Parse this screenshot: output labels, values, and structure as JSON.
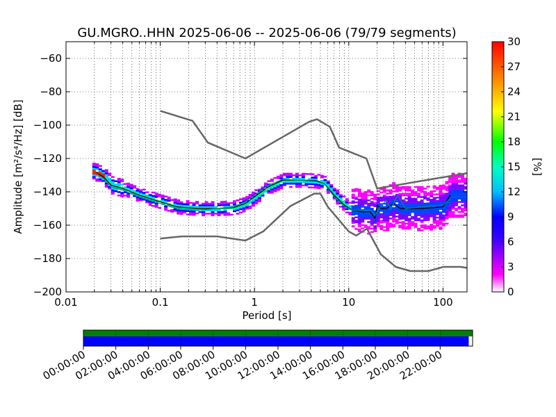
{
  "chart_data": {
    "type": "heatmap",
    "title": "GU.MGRO..HHN   2025-06-06 -- 2025-06-06  (79/79 segments)",
    "xlabel": "Period [s]",
    "ylabel": "Amplitude [m²/s⁴/Hz] [dB]",
    "xscale": "log",
    "xlim": [
      0.01,
      180
    ],
    "ylim": [
      -200,
      -50
    ],
    "xticks": [
      {
        "value": 0.01,
        "label": "0.01"
      },
      {
        "value": 0.1,
        "label": "0.1"
      },
      {
        "value": 1,
        "label": "1"
      },
      {
        "value": 10,
        "label": "10"
      },
      {
        "value": 100,
        "label": "100"
      }
    ],
    "yticks": [
      {
        "value": -60,
        "label": "−60"
      },
      {
        "value": -80,
        "label": "−80"
      },
      {
        "value": -100,
        "label": "−100"
      },
      {
        "value": -120,
        "label": "−120"
      },
      {
        "value": -140,
        "label": "−140"
      },
      {
        "value": -160,
        "label": "−160"
      },
      {
        "value": -180,
        "label": "−180"
      },
      {
        "value": -200,
        "label": "−200"
      }
    ],
    "grid": true,
    "colorbar": {
      "label": "[%]",
      "range": [
        0,
        30
      ],
      "ticks": [
        {
          "value": 0,
          "label": "0"
        },
        {
          "value": 3,
          "label": "3"
        },
        {
          "value": 6,
          "label": "6"
        },
        {
          "value": 9,
          "label": "9"
        },
        {
          "value": 12,
          "label": "12"
        },
        {
          "value": 15,
          "label": "15"
        },
        {
          "value": 18,
          "label": "18"
        },
        {
          "value": 21,
          "label": "21"
        },
        {
          "value": 24,
          "label": "24"
        },
        {
          "value": 27,
          "label": "27"
        },
        {
          "value": 30,
          "label": "30"
        }
      ],
      "colors": [
        "#ffffff",
        "#ff00ff",
        "#7f00ff",
        "#0000ff",
        "#00bfff",
        "#00ffbf",
        "#00ff00",
        "#ffff00",
        "#ff7f00",
        "#ff0000"
      ]
    },
    "series": [
      {
        "role": "new-high-noise-model",
        "color": "#666666",
        "x": [
          0.1,
          0.22,
          0.32,
          0.8,
          3.8,
          4.6,
          6.3,
          7.9,
          15.4,
          20,
          354.8
        ],
        "y": [
          -91.5,
          -97.4,
          -110.5,
          -120,
          -98,
          -96.5,
          -101,
          -113.5,
          -120,
          -138,
          -126
        ]
      },
      {
        "role": "new-low-noise-model",
        "color": "#666666",
        "x": [
          0.1,
          0.17,
          0.4,
          0.8,
          1.24,
          2.4,
          4.3,
          5,
          6,
          10,
          12,
          15.6,
          21.9,
          31.6,
          45,
          70,
          101,
          154,
          180
        ],
        "y": [
          -168,
          -166.7,
          -166.7,
          -169.2,
          -163.7,
          -148.6,
          -141.1,
          -141.1,
          -149,
          -163.8,
          -166.2,
          -162.1,
          -177.5,
          -185,
          -187.5,
          -187.5,
          -185,
          -185,
          -185.6
        ]
      },
      {
        "role": "mean",
        "color": "#000000",
        "x": [
          0.02,
          0.025,
          0.03,
          0.04,
          0.06,
          0.1,
          0.15,
          0.25,
          0.4,
          0.6,
          0.8,
          1,
          1.4,
          2,
          3,
          4.5,
          5.5,
          7,
          9,
          11,
          14,
          17,
          19,
          20,
          22,
          25,
          30,
          35,
          40,
          60,
          100,
          120
        ],
        "y": [
          -128,
          -131,
          -136,
          -138,
          -142,
          -146,
          -149,
          -150,
          -150,
          -149.5,
          -147,
          -143,
          -137,
          -133,
          -133,
          -133.5,
          -135,
          -142,
          -148,
          -151,
          -152,
          -152,
          -156,
          -148,
          -150,
          -150,
          -147,
          -150,
          -150,
          -150,
          -149,
          -142
        ]
      },
      {
        "role": "mode",
        "color": "#008b8b",
        "x": [
          0.02,
          0.025,
          0.03,
          0.04,
          0.06,
          0.1,
          0.15,
          0.25,
          0.4,
          0.6,
          0.8,
          1,
          1.4,
          2,
          3,
          4.5,
          5.5,
          7,
          9,
          11,
          14,
          17,
          19,
          21,
          25,
          28,
          33,
          40,
          60,
          100,
          120
        ],
        "y": [
          -128,
          -132,
          -137,
          -139,
          -143,
          -147,
          -150,
          -151,
          -150,
          -149,
          -146,
          -142,
          -136,
          -132.5,
          -133,
          -133,
          -135,
          -143,
          -149,
          -151,
          -151,
          -151,
          -154,
          -150,
          -145,
          -150,
          -142,
          -150,
          -149,
          -148,
          -144
        ]
      }
    ],
    "density_summary": "Probabilistic power spectral density: high occupancy (green-cyan) along the mean curve from about 0.02 s to 10 s, broader low-occupancy (magenta-blue) spread between 10 s and 180 s roughly from -135 to -165 dB."
  },
  "timeline": {
    "ticks": [
      "00:00:00",
      "02:00:00",
      "04:00:00",
      "06:00:00",
      "08:00:00",
      "10:00:00",
      "12:00:00",
      "14:00:00",
      "16:00:00",
      "18:00:00",
      "20:00:00",
      "22:00:00"
    ],
    "data_coverage_color": "#008000",
    "used_segments_color": "#0000ff",
    "used_fraction": 0.99
  }
}
